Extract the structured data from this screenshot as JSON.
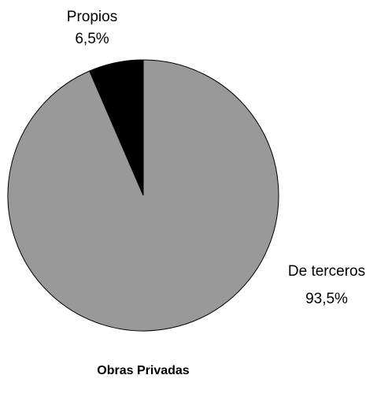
{
  "chart_data": {
    "type": "pie",
    "title": "Obras Privadas",
    "categories": [
      "Propios",
      "De terceros"
    ],
    "values": [
      6.5,
      93.5
    ],
    "value_labels": [
      "6,5%",
      "93,5%"
    ],
    "colors": [
      "#000000",
      "#999999"
    ]
  }
}
